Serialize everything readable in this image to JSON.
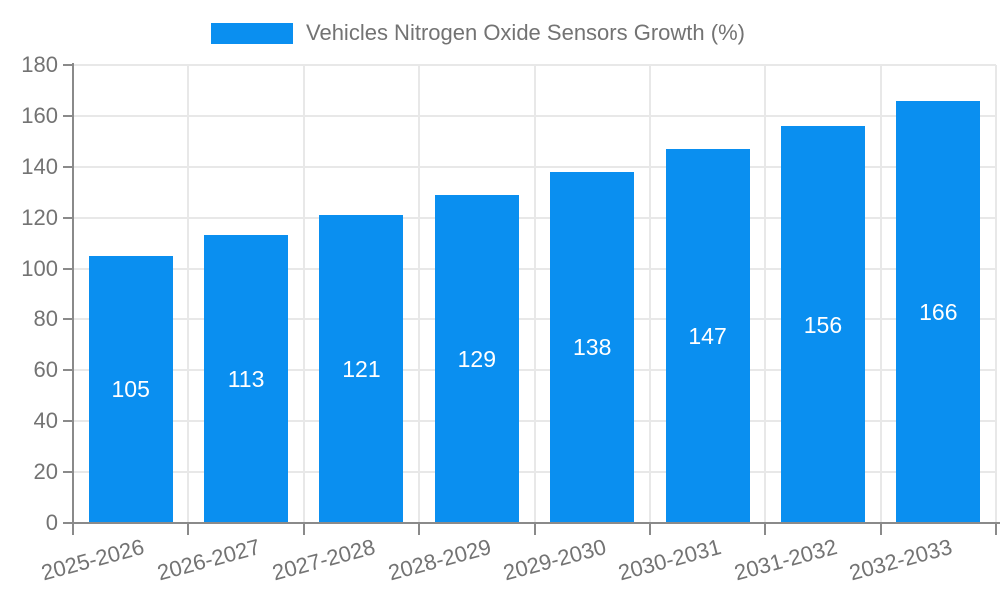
{
  "legend": {
    "label": "Vehicles Nitrogen Oxide Sensors Growth (%)"
  },
  "colors": {
    "bar": "#0a8ff0",
    "axis": "#8a8a8a",
    "grid": "#e8e8e8",
    "tick_text": "#737373",
    "value_label": "#ffffff",
    "background": "#ffffff"
  },
  "chart_data": {
    "type": "bar",
    "title": "Vehicles Nitrogen Oxide Sensors Growth (%)",
    "categories": [
      "2025-2026",
      "2026-2027",
      "2027-2028",
      "2028-2029",
      "2029-2030",
      "2030-2031",
      "2031-2032",
      "2032-2033"
    ],
    "values": [
      105,
      113,
      121,
      129,
      138,
      147,
      156,
      166
    ],
    "xlabel": "",
    "ylabel": "",
    "ylim": [
      0,
      180
    ],
    "ytick_step": 20,
    "yticks": [
      0,
      20,
      40,
      60,
      80,
      100,
      120,
      140,
      160,
      180
    ],
    "grid": true,
    "legend_position": "top-center",
    "value_labels_position": "inside-middle",
    "x_tick_rotation_deg": -15
  }
}
